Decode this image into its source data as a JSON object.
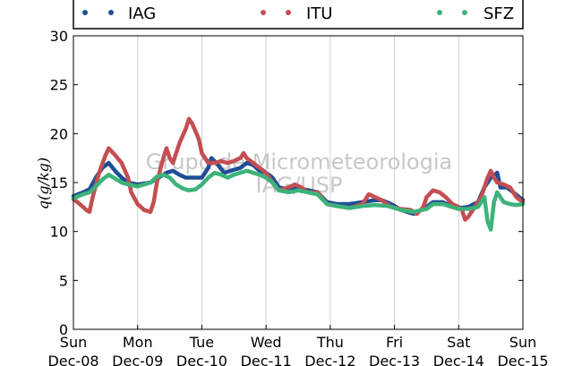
{
  "chart_data": {
    "type": "scatter",
    "ylabel": "q(g/kg)",
    "ylim": [
      0,
      30
    ],
    "yticks": [
      "0",
      "5",
      "10",
      "15",
      "20",
      "25",
      "30"
    ],
    "xlim": [
      "2015-12-08",
      "2015-12-15"
    ],
    "xticks": [
      {
        "day": "Sun",
        "date": "Dec-08"
      },
      {
        "day": "Mon",
        "date": "Dec-09"
      },
      {
        "day": "Tue",
        "date": "Dec-10"
      },
      {
        "day": "Wed",
        "date": "Dec-11"
      },
      {
        "day": "Thu",
        "date": "Dec-12"
      },
      {
        "day": "Fri",
        "date": "Dec-13"
      },
      {
        "day": "Sat",
        "date": "Dec-14"
      },
      {
        "day": "Sun",
        "date": "Dec-15"
      }
    ],
    "grid": "vertical",
    "legend_placement": "top",
    "watermark": [
      "Grupo de Micrometeorologia",
      "IAG/USP"
    ],
    "series": [
      {
        "name": "IAG",
        "color": "#1f4e96",
        "points": [
          [
            0,
            13.6
          ],
          [
            0.15,
            14
          ],
          [
            0.25,
            14.3
          ],
          [
            0.35,
            15.5
          ],
          [
            0.45,
            16.5
          ],
          [
            0.55,
            17
          ],
          [
            0.65,
            16.2
          ],
          [
            0.75,
            15.5
          ],
          [
            0.85,
            15
          ],
          [
            1.0,
            14.8
          ],
          [
            1.1,
            14.9
          ],
          [
            1.2,
            15
          ],
          [
            1.35,
            15.6
          ],
          [
            1.45,
            16
          ],
          [
            1.55,
            16.2
          ],
          [
            1.65,
            15.8
          ],
          [
            1.75,
            15.5
          ],
          [
            1.85,
            15.5
          ],
          [
            2.0,
            15.5
          ],
          [
            2.1,
            16.5
          ],
          [
            2.15,
            17.5
          ],
          [
            2.25,
            16.8
          ],
          [
            2.35,
            16
          ],
          [
            2.5,
            16.3
          ],
          [
            2.6,
            16.5
          ],
          [
            2.7,
            17
          ],
          [
            2.8,
            16.8
          ],
          [
            2.9,
            16.2
          ],
          [
            3.0,
            16
          ],
          [
            3.1,
            15.5
          ],
          [
            3.2,
            14.5
          ],
          [
            3.35,
            14.3
          ],
          [
            3.5,
            14.5
          ],
          [
            3.6,
            14.3
          ],
          [
            3.8,
            14
          ],
          [
            3.95,
            13
          ],
          [
            4.1,
            12.8
          ],
          [
            4.3,
            12.8
          ],
          [
            4.5,
            13
          ],
          [
            4.7,
            13.2
          ],
          [
            4.8,
            13.2
          ],
          [
            4.95,
            12.8
          ],
          [
            5.1,
            12.2
          ],
          [
            5.3,
            11.8
          ],
          [
            5.5,
            12.5
          ],
          [
            5.6,
            13
          ],
          [
            5.75,
            13
          ],
          [
            5.9,
            12.5
          ],
          [
            6.0,
            12.4
          ],
          [
            6.15,
            12.5
          ],
          [
            6.3,
            13
          ],
          [
            6.4,
            14.5
          ],
          [
            6.5,
            15.5
          ],
          [
            6.6,
            16
          ],
          [
            6.65,
            14.5
          ],
          [
            6.75,
            14.5
          ],
          [
            6.85,
            14
          ],
          [
            7.0,
            13.2
          ]
        ]
      },
      {
        "name": "ITU",
        "color": "#c44e52",
        "points": [
          [
            0,
            13.3
          ],
          [
            0.1,
            12.8
          ],
          [
            0.2,
            12.2
          ],
          [
            0.25,
            12
          ],
          [
            0.3,
            13.5
          ],
          [
            0.4,
            16
          ],
          [
            0.5,
            17.8
          ],
          [
            0.55,
            18.5
          ],
          [
            0.65,
            17.8
          ],
          [
            0.75,
            17
          ],
          [
            0.85,
            15.5
          ],
          [
            0.9,
            14
          ],
          [
            1.0,
            12.8
          ],
          [
            1.1,
            12.2
          ],
          [
            1.2,
            12
          ],
          [
            1.25,
            13
          ],
          [
            1.3,
            15
          ],
          [
            1.4,
            17.5
          ],
          [
            1.45,
            18.5
          ],
          [
            1.5,
            17.5
          ],
          [
            1.55,
            17
          ],
          [
            1.65,
            19
          ],
          [
            1.75,
            20.5
          ],
          [
            1.8,
            21.5
          ],
          [
            1.85,
            21
          ],
          [
            1.95,
            19.5
          ],
          [
            2.0,
            18
          ],
          [
            2.1,
            17
          ],
          [
            2.2,
            17
          ],
          [
            2.3,
            17.2
          ],
          [
            2.4,
            17
          ],
          [
            2.5,
            17.2
          ],
          [
            2.6,
            17.5
          ],
          [
            2.65,
            18
          ],
          [
            2.7,
            17.5
          ],
          [
            2.8,
            17
          ],
          [
            2.9,
            16.5
          ],
          [
            3.0,
            16
          ],
          [
            3.1,
            15
          ],
          [
            3.2,
            14.2
          ],
          [
            3.35,
            14.5
          ],
          [
            3.45,
            14.8
          ],
          [
            3.55,
            14.5
          ],
          [
            3.65,
            14
          ],
          [
            3.8,
            14
          ],
          [
            3.95,
            12.8
          ],
          [
            4.1,
            12.6
          ],
          [
            4.3,
            12.4
          ],
          [
            4.5,
            12.8
          ],
          [
            4.6,
            13.8
          ],
          [
            4.7,
            13.5
          ],
          [
            4.8,
            13.2
          ],
          [
            4.95,
            12.5
          ],
          [
            5.1,
            12.3
          ],
          [
            5.25,
            12.2
          ],
          [
            5.35,
            11.8
          ],
          [
            5.45,
            12.5
          ],
          [
            5.5,
            13.5
          ],
          [
            5.6,
            14.2
          ],
          [
            5.7,
            14
          ],
          [
            5.8,
            13.5
          ],
          [
            5.9,
            12.8
          ],
          [
            6.0,
            12.5
          ],
          [
            6.05,
            12.2
          ],
          [
            6.1,
            11.2
          ],
          [
            6.15,
            11.5
          ],
          [
            6.25,
            12.5
          ],
          [
            6.35,
            13.5
          ],
          [
            6.45,
            15.5
          ],
          [
            6.5,
            16.2
          ],
          [
            6.55,
            15.5
          ],
          [
            6.6,
            15
          ],
          [
            6.7,
            14.8
          ],
          [
            6.8,
            14.5
          ],
          [
            6.9,
            13.5
          ],
          [
            7.0,
            13
          ]
        ]
      },
      {
        "name": "SFZ",
        "color": "#3db37a",
        "points": [
          [
            0,
            13.4
          ],
          [
            0.15,
            13.8
          ],
          [
            0.25,
            14
          ],
          [
            0.35,
            14.6
          ],
          [
            0.45,
            15.3
          ],
          [
            0.55,
            15.8
          ],
          [
            0.65,
            15.4
          ],
          [
            0.75,
            15
          ],
          [
            0.85,
            14.8
          ],
          [
            1.0,
            14.6
          ],
          [
            1.1,
            14.8
          ],
          [
            1.2,
            15
          ],
          [
            1.3,
            15.6
          ],
          [
            1.4,
            15.8
          ],
          [
            1.5,
            15.5
          ],
          [
            1.6,
            14.8
          ],
          [
            1.7,
            14.4
          ],
          [
            1.8,
            14.2
          ],
          [
            1.9,
            14.3
          ],
          [
            2.0,
            14.8
          ],
          [
            2.1,
            15.5
          ],
          [
            2.2,
            16
          ],
          [
            2.3,
            15.8
          ],
          [
            2.4,
            15.5
          ],
          [
            2.5,
            15.8
          ],
          [
            2.6,
            16
          ],
          [
            2.7,
            16.2
          ],
          [
            2.8,
            16
          ],
          [
            2.9,
            15.8
          ],
          [
            3.0,
            15.5
          ],
          [
            3.1,
            15
          ],
          [
            3.2,
            14.2
          ],
          [
            3.35,
            14
          ],
          [
            3.5,
            14.2
          ],
          [
            3.65,
            14
          ],
          [
            3.8,
            13.8
          ],
          [
            3.95,
            12.8
          ],
          [
            4.1,
            12.6
          ],
          [
            4.3,
            12.4
          ],
          [
            4.5,
            12.6
          ],
          [
            4.7,
            12.7
          ],
          [
            4.9,
            12.6
          ],
          [
            5.1,
            12.2
          ],
          [
            5.3,
            12
          ],
          [
            5.5,
            12.3
          ],
          [
            5.6,
            12.8
          ],
          [
            5.75,
            12.8
          ],
          [
            5.9,
            12.5
          ],
          [
            6.0,
            12.3
          ],
          [
            6.15,
            12.3
          ],
          [
            6.3,
            12.5
          ],
          [
            6.4,
            13.5
          ],
          [
            6.45,
            11
          ],
          [
            6.5,
            10.2
          ],
          [
            6.55,
            13
          ],
          [
            6.6,
            14
          ],
          [
            6.7,
            13
          ],
          [
            6.8,
            12.8
          ],
          [
            6.9,
            12.7
          ],
          [
            7.0,
            12.8
          ]
        ]
      }
    ]
  }
}
